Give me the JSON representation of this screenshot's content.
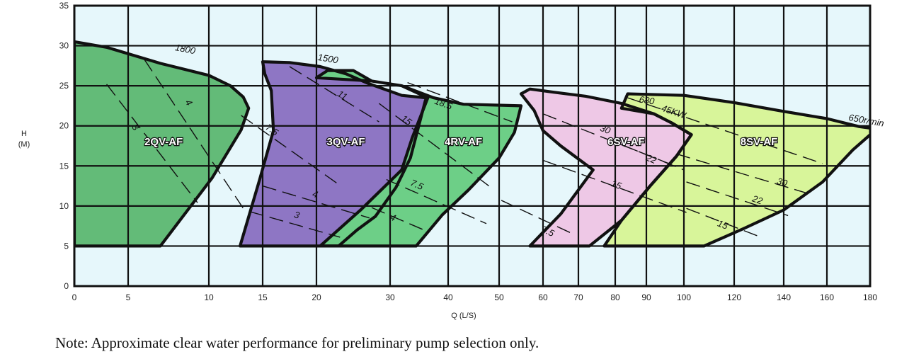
{
  "chart_data": {
    "type": "area",
    "xlabel": "Q (L/S)",
    "ylabel_line1": "H",
    "ylabel_line2": "(M)",
    "ylim": [
      0,
      35
    ],
    "y_ticks": [
      0,
      5,
      10,
      15,
      20,
      25,
      30,
      35
    ],
    "x_ticks": [
      "0",
      "5",
      "10",
      "15",
      "20",
      "30",
      "40",
      "50",
      "60",
      "70",
      "80",
      "90",
      "100",
      "120",
      "140",
      "160",
      "180"
    ],
    "colors": {
      "background": "#e6f7fb",
      "grid": "#111111",
      "2QV-AF": "#63bb78",
      "3QV-AF": "#8e76c4",
      "4RV-AF": "#6dcf87",
      "6SV-AF": "#eec8e6",
      "8SV-AF": "#d8f59a"
    },
    "series": [
      {
        "name": "2QV-AF",
        "speed_label": "1800",
        "points": [
          [
            0,
            5
          ],
          [
            0,
            30.5
          ],
          [
            3,
            29.8
          ],
          [
            7,
            27.8
          ],
          [
            10,
            26.3
          ],
          [
            12,
            25
          ],
          [
            13.2,
            23.6
          ],
          [
            13.7,
            22.2
          ],
          [
            13,
            19.5
          ],
          [
            10.3,
            13.5
          ],
          [
            7,
            5
          ]
        ],
        "power_lines": [
          {
            "label": "4",
            "points": [
              [
                6,
                28.3
              ],
              [
                13.3,
                9.5
              ]
            ],
            "label_at": [
              8.6,
              22.7
            ]
          },
          {
            "label": "3",
            "points": [
              [
                3,
                25.2
              ],
              [
                9.3,
                10.4
              ]
            ],
            "label_at": [
              5.3,
              19.6
            ]
          }
        ]
      },
      {
        "name": "3QV-AF",
        "speed_label": "1500",
        "points": [
          [
            15,
            28
          ],
          [
            17.5,
            27.9
          ],
          [
            20.5,
            27.4
          ],
          [
            24,
            26.5
          ],
          [
            27,
            25.3
          ],
          [
            32,
            23.8
          ],
          [
            36.2,
            23.5
          ],
          [
            33.5,
            16
          ],
          [
            31,
            12.3
          ],
          [
            28,
            8.7
          ],
          [
            25.5,
            7
          ],
          [
            23,
            5
          ],
          [
            12.9,
            5
          ],
          [
            14.7,
            13.2
          ],
          [
            16,
            19.4
          ],
          [
            15.8,
            24.4
          ],
          [
            15.2,
            26.5
          ]
        ],
        "power_lines": [
          {
            "label": "11",
            "points": [
              [
                17.5,
                27.4
              ],
              [
                28.5,
                20.5
              ]
            ],
            "label_at": [
              23.3,
              23.5
            ]
          },
          {
            "label": "7.5",
            "points": [
              [
                13,
                21.3
              ],
              [
                23,
                12.7
              ]
            ],
            "label_at": [
              15.7,
              19.2
            ]
          },
          {
            "label": "4",
            "points": [
              [
                15,
                12.5
              ],
              [
                27.2,
                8.5
              ]
            ],
            "label_at": [
              19.8,
              11.1
            ]
          },
          {
            "label": "3",
            "points": [
              [
                13.8,
                9.3
              ],
              [
                23.2,
                6.1
              ]
            ],
            "label_at": [
              18.1,
              8.5
            ]
          }
        ]
      },
      {
        "name": "4RV-AF",
        "speed_label": "",
        "points": [
          [
            20,
            26
          ],
          [
            21.5,
            26.9
          ],
          [
            25,
            26.9
          ],
          [
            27.5,
            25.6
          ],
          [
            32,
            25
          ],
          [
            37.5,
            23.5
          ],
          [
            43,
            22.7
          ],
          [
            55,
            22.5
          ],
          [
            53.5,
            19.2
          ],
          [
            50,
            16
          ],
          [
            44,
            12
          ],
          [
            39,
            8.9
          ],
          [
            34.5,
            5
          ],
          [
            20.5,
            5
          ],
          [
            26,
            9.5
          ],
          [
            32,
            14.5
          ],
          [
            33.8,
            18.5
          ],
          [
            36.5,
            23.5
          ],
          [
            32,
            25
          ],
          [
            27.5,
            25.6
          ]
        ],
        "power_lines": [
          {
            "label": "18.5",
            "points": [
              [
                33,
                25.4
              ],
              [
                53,
                20.5
              ]
            ],
            "label_at": [
              39,
              22.4
            ]
          },
          {
            "label": "15",
            "points": [
              [
                28.5,
                22.8
              ],
              [
                48,
                12.5
              ]
            ],
            "label_at": [
              32.5,
              20.4
            ]
          },
          {
            "label": "7.5",
            "points": [
              [
                29.5,
                13.3
              ],
              [
                47.5,
                7.8
              ]
            ],
            "label_at": [
              34.4,
              12.3
            ]
          },
          {
            "label": "4",
            "points": [
              [
                27.5,
                9.8
              ],
              [
                36.5,
                6.8
              ]
            ],
            "label_at": [
              30.3,
              8.2
            ]
          }
        ]
      },
      {
        "name": "6SV-AF",
        "speed_label": "680",
        "points": [
          [
            55,
            24
          ],
          [
            57,
            24.6
          ],
          [
            63,
            24.2
          ],
          [
            72,
            23.7
          ],
          [
            82,
            22.8
          ],
          [
            92,
            21.5
          ],
          [
            97,
            20.3
          ],
          [
            103,
            18.9
          ],
          [
            98,
            16.2
          ],
          [
            91,
            12.5
          ],
          [
            82,
            8.2
          ],
          [
            73,
            5
          ],
          [
            68,
            5
          ],
          [
            57,
            5
          ],
          [
            65,
            9
          ],
          [
            74,
            14.5
          ],
          [
            65,
            17.5
          ],
          [
            60,
            19.4
          ],
          [
            58,
            21.9
          ]
        ],
        "power_lines": [
          {
            "label": "30",
            "points": [
              [
                60,
                21.5
              ],
              [
                96,
                15.3
              ]
            ],
            "label_at": [
              77,
              19.2
            ]
          },
          {
            "label": "22",
            "points": [
              [
                83,
                17.5
              ],
              [
                100,
                14.5
              ]
            ],
            "label_at": [
              91,
              15.5
            ]
          },
          {
            "label": "15",
            "points": [
              [
                60,
                15.7
              ],
              [
                101,
                9.2
              ]
            ],
            "label_at": [
              80,
              12.3
            ]
          },
          {
            "label": "7.5",
            "points": [
              [
                50.5,
                10.7
              ],
              [
                69,
                6.4
              ]
            ],
            "label_at": [
              61,
              6.5
            ]
          }
        ]
      },
      {
        "name": "8SV-AF",
        "speed_label": "650r/min",
        "points": [
          [
            82,
            22.2
          ],
          [
            84,
            24
          ],
          [
            100,
            23.8
          ],
          [
            120,
            22.9
          ],
          [
            140,
            21.8
          ],
          [
            160,
            20.9
          ],
          [
            175,
            19.9
          ],
          [
            183,
            19.6
          ],
          [
            172,
            17
          ],
          [
            158,
            13
          ],
          [
            140,
            9.5
          ],
          [
            124,
            7.2
          ],
          [
            108,
            5
          ],
          [
            77,
            5
          ],
          [
            82,
            8.2
          ],
          [
            91,
            12.5
          ],
          [
            98,
            16.2
          ],
          [
            103,
            18.9
          ],
          [
            97,
            20.3
          ],
          [
            92,
            21.5
          ]
        ],
        "power_lines": [
          {
            "label": "45KW",
            "points": [
              [
                84,
                23.5
              ],
              [
                158,
                15.3
              ]
            ],
            "label_at": [
              97,
              21.4
            ]
          },
          {
            "label": "30",
            "points": [
              [
                98,
                16.5
              ],
              [
                152,
                11.5
              ]
            ],
            "label_at": [
              139,
              12.6
            ]
          },
          {
            "label": "22",
            "points": [
              [
                101,
                13
              ],
              [
                142,
                8.8
              ]
            ],
            "label_at": [
              129,
              10.4
            ]
          },
          {
            "label": "15",
            "points": [
              [
                101,
                9.7
              ],
              [
                130,
                6.2
              ]
            ],
            "label_at": [
              115,
              7.3
            ]
          }
        ]
      }
    ]
  },
  "note": "Note: Approximate clear water performance for preliminary pump selection only."
}
